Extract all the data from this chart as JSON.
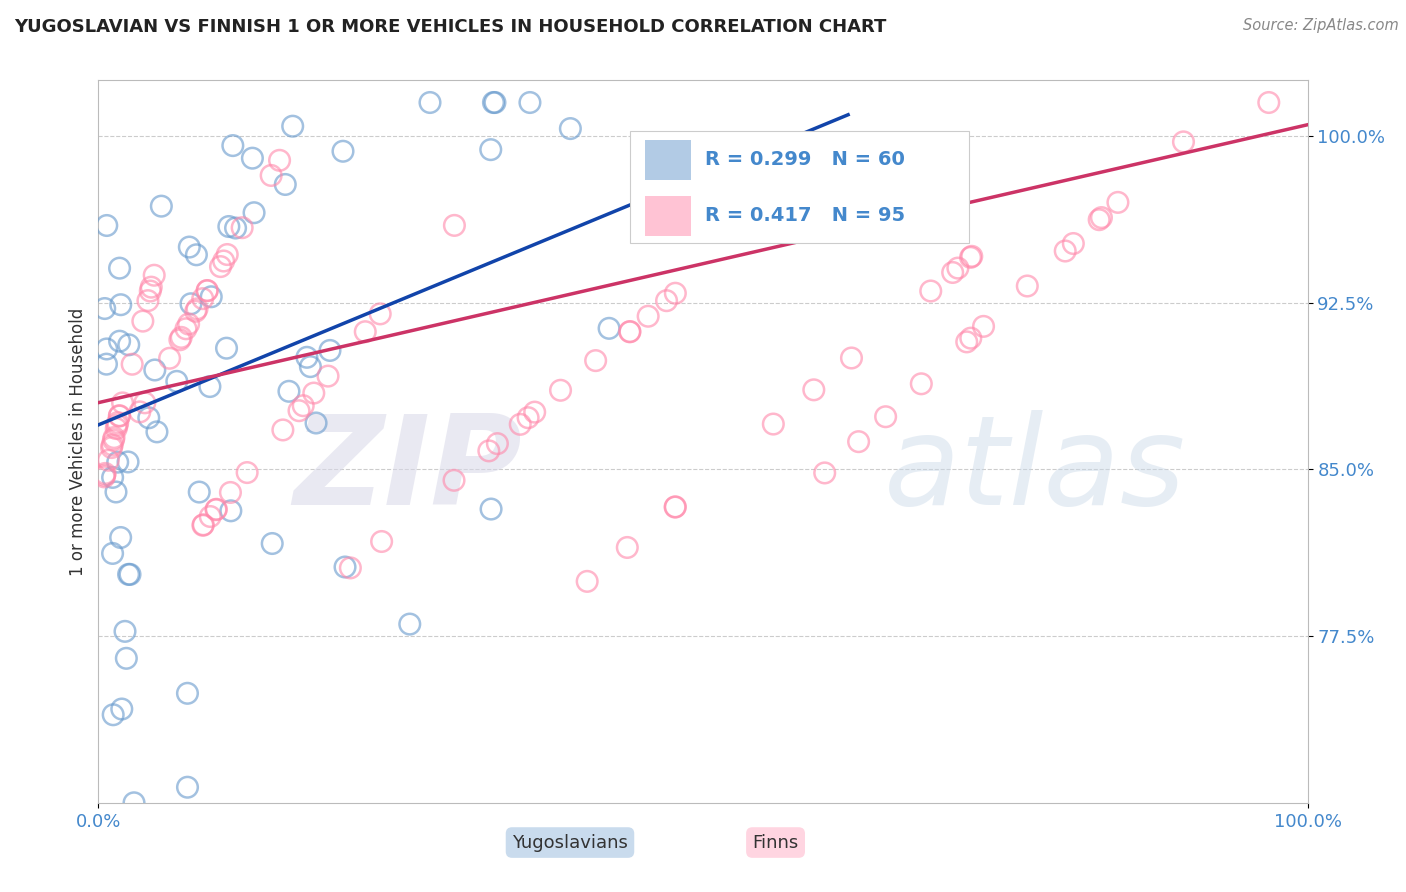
{
  "title": "YUGOSLAVIAN VS FINNISH 1 OR MORE VEHICLES IN HOUSEHOLD CORRELATION CHART",
  "source": "Source: ZipAtlas.com",
  "ylabel": "1 or more Vehicles in Household",
  "xlabel": "",
  "xlim": [
    0.0,
    100.0
  ],
  "ylim": [
    70.0,
    102.5
  ],
  "yticks": [
    77.5,
    85.0,
    92.5,
    100.0
  ],
  "xticks": [
    0.0,
    100.0
  ],
  "xticklabels": [
    "0.0%",
    "100.0%"
  ],
  "yticklabels": [
    "77.5%",
    "85.0%",
    "92.5%",
    "100.0%"
  ],
  "blue_R": 0.299,
  "blue_N": 60,
  "pink_R": 0.417,
  "pink_N": 95,
  "blue_color": "#6699CC",
  "pink_color": "#FF88AA",
  "blue_line_color": "#1144AA",
  "pink_line_color": "#CC3366",
  "legend_label_blue": "Yugoslavians",
  "legend_label_pink": "Finns",
  "grid_color": "#CCCCCC",
  "axis_color": "#BBBBBB",
  "title_color": "#222222",
  "source_color": "#888888",
  "ylabel_color": "#333333",
  "tick_color": "#4488CC",
  "background_color": "#FFFFFF",
  "watermark_zip_color": "#DDDDEE",
  "watermark_atlas_color": "#CCDDE8"
}
